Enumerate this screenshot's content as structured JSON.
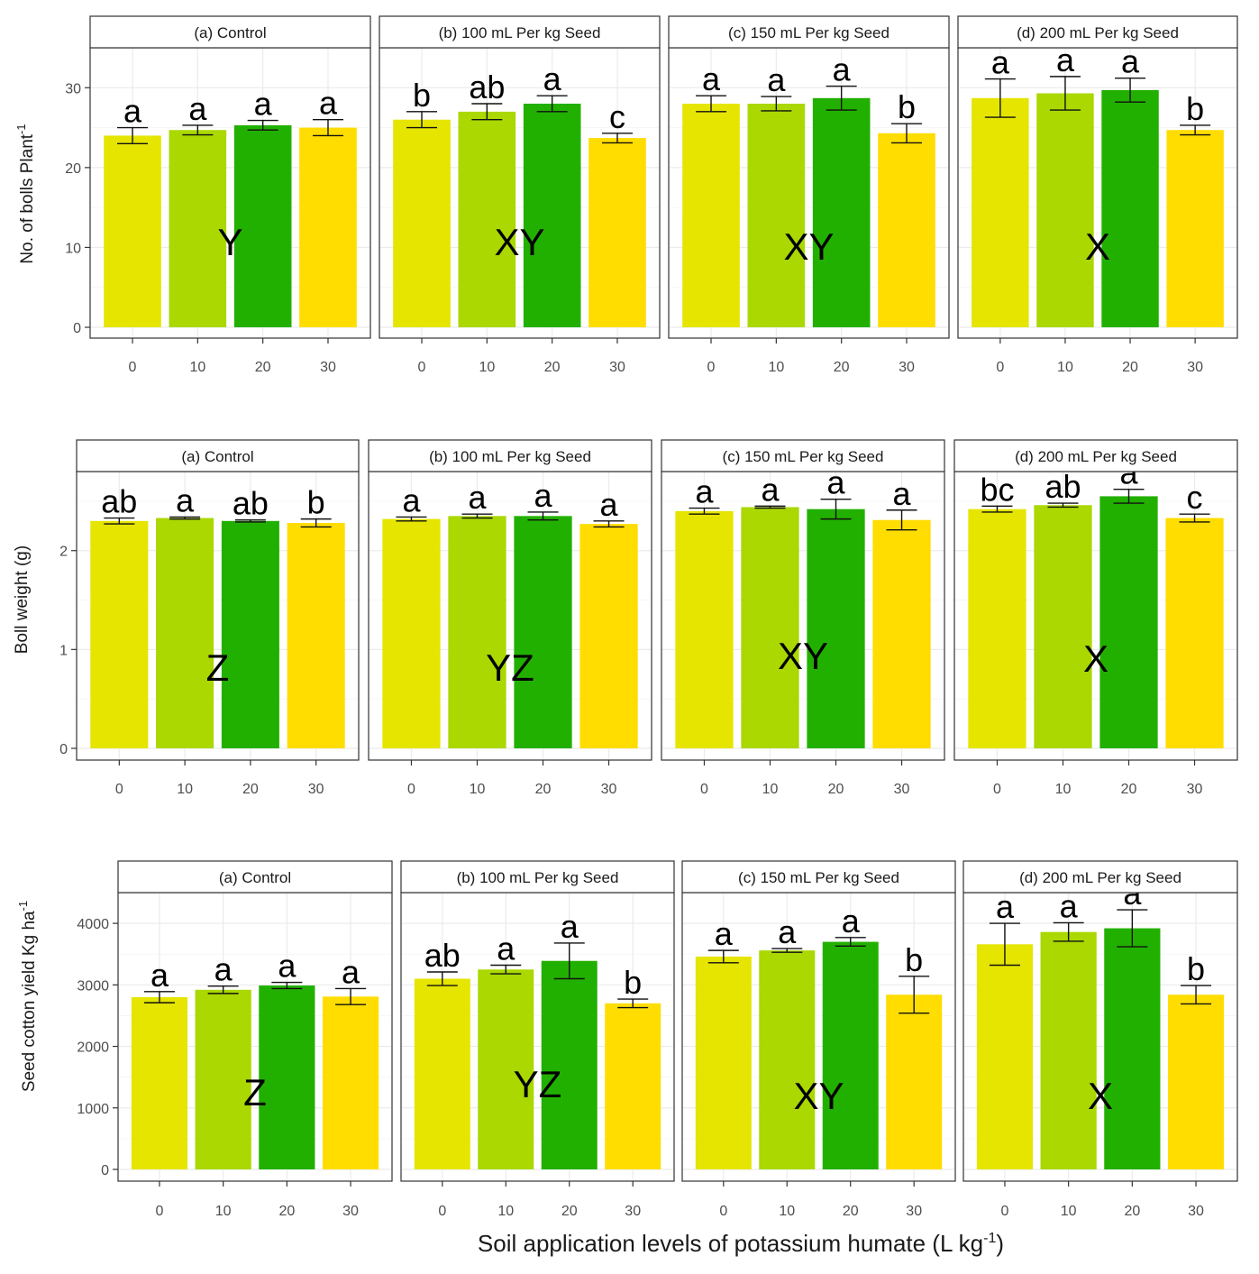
{
  "xlabel": "Soil application levels of potassium humate (L kg",
  "xlabel_sup": "-1",
  "xlabel_end": ")",
  "colors": [
    "#e5e500",
    "#aad800",
    "#22b000",
    "#ffdd00"
  ],
  "chart_data": [
    {
      "type": "bar",
      "title": "No. of bolls per plant",
      "ylabel": "No. of bolls Plant",
      "ylabel_sup": "-1",
      "ylim": [
        0,
        35
      ],
      "yticks": [
        0,
        10,
        20,
        30
      ],
      "ytick_labels": [
        "0",
        "10",
        "20",
        "30"
      ],
      "categories": [
        "0",
        "10",
        "20",
        "30"
      ],
      "facets": [
        {
          "label": "(a) Control",
          "values": [
            24.0,
            24.7,
            25.3,
            25.0
          ],
          "errors": [
            1.0,
            0.6,
            0.6,
            1.0
          ],
          "letters": [
            "a",
            "a",
            "a",
            "a"
          ],
          "group": "Y"
        },
        {
          "label": "(b) 100 mL Per kg Seed",
          "values": [
            26.0,
            27.0,
            28.0,
            23.7
          ],
          "errors": [
            1.0,
            1.0,
            1.0,
            0.6
          ],
          "letters": [
            "b",
            "ab",
            "a",
            "c"
          ],
          "group": "XY"
        },
        {
          "label": "(c) 150 mL Per kg Seed",
          "values": [
            28.0,
            28.0,
            28.7,
            24.3
          ],
          "errors": [
            1.0,
            0.9,
            1.5,
            1.2
          ],
          "letters": [
            "a",
            "a",
            "a",
            "b"
          ],
          "group": "XY"
        },
        {
          "label": "(d) 200 mL Per kg Seed",
          "values": [
            28.7,
            29.3,
            29.7,
            24.7
          ],
          "errors": [
            2.4,
            2.1,
            1.5,
            0.6
          ],
          "letters": [
            "a",
            "a",
            "a",
            "b"
          ],
          "group": "X"
        }
      ]
    },
    {
      "type": "bar",
      "title": "Boll weight",
      "ylabel": "Boll weight (g)",
      "ylabel_sup": "",
      "ylim": [
        0,
        2.8
      ],
      "yticks": [
        0,
        1,
        2
      ],
      "ytick_labels": [
        "0",
        "1",
        "2"
      ],
      "categories": [
        "0",
        "10",
        "20",
        "30"
      ],
      "facets": [
        {
          "label": "(a) Control",
          "values": [
            2.3,
            2.33,
            2.3,
            2.28
          ],
          "errors": [
            0.03,
            0.01,
            0.01,
            0.04
          ],
          "letters": [
            "ab",
            "a",
            "ab",
            "b"
          ],
          "group": "Z"
        },
        {
          "label": "(b) 100 mL Per kg Seed",
          "values": [
            2.32,
            2.35,
            2.35,
            2.27
          ],
          "errors": [
            0.02,
            0.02,
            0.04,
            0.03
          ],
          "letters": [
            "a",
            "a",
            "a",
            "a"
          ],
          "group": "YZ"
        },
        {
          "label": "(c) 150 mL Per kg Seed",
          "values": [
            2.4,
            2.44,
            2.42,
            2.31
          ],
          "errors": [
            0.03,
            0.01,
            0.1,
            0.1
          ],
          "letters": [
            "a",
            "a",
            "a",
            "a"
          ],
          "group": "XY"
        },
        {
          "label": "(d) 200 mL Per kg Seed",
          "values": [
            2.42,
            2.46,
            2.55,
            2.33
          ],
          "errors": [
            0.03,
            0.02,
            0.07,
            0.04
          ],
          "letters": [
            "bc",
            "ab",
            "a",
            "c"
          ],
          "group": "X"
        }
      ]
    },
    {
      "type": "bar",
      "title": "Seed cotton yield",
      "ylabel": "Seed cotton yield Kg ha",
      "ylabel_sup": "-1",
      "ylim": [
        0,
        4500
      ],
      "yticks": [
        0,
        1000,
        2000,
        3000,
        4000
      ],
      "ytick_labels": [
        "0",
        "1000",
        "2000",
        "3000",
        "4000"
      ],
      "categories": [
        "0",
        "10",
        "20",
        "30"
      ],
      "facets": [
        {
          "label": "(a) Control",
          "values": [
            2800,
            2920,
            2990,
            2810
          ],
          "errors": [
            90,
            60,
            50,
            130
          ],
          "letters": [
            "a",
            "a",
            "a",
            "a"
          ],
          "group": "Z"
        },
        {
          "label": "(b) 100 mL Per kg Seed",
          "values": [
            3100,
            3250,
            3390,
            2700
          ],
          "errors": [
            110,
            70,
            290,
            70
          ],
          "letters": [
            "ab",
            "a",
            "a",
            "b"
          ],
          "group": "YZ"
        },
        {
          "label": "(c) 150 mL Per kg Seed",
          "values": [
            3460,
            3560,
            3700,
            2840
          ],
          "errors": [
            100,
            30,
            70,
            300
          ],
          "letters": [
            "a",
            "a",
            "a",
            "b"
          ],
          "group": "XY"
        },
        {
          "label": "(d) 200 mL Per kg Seed",
          "values": [
            3660,
            3860,
            3920,
            2840
          ],
          "errors": [
            340,
            150,
            300,
            150
          ],
          "letters": [
            "a",
            "a",
            "a",
            "b"
          ],
          "group": "X"
        }
      ]
    }
  ]
}
